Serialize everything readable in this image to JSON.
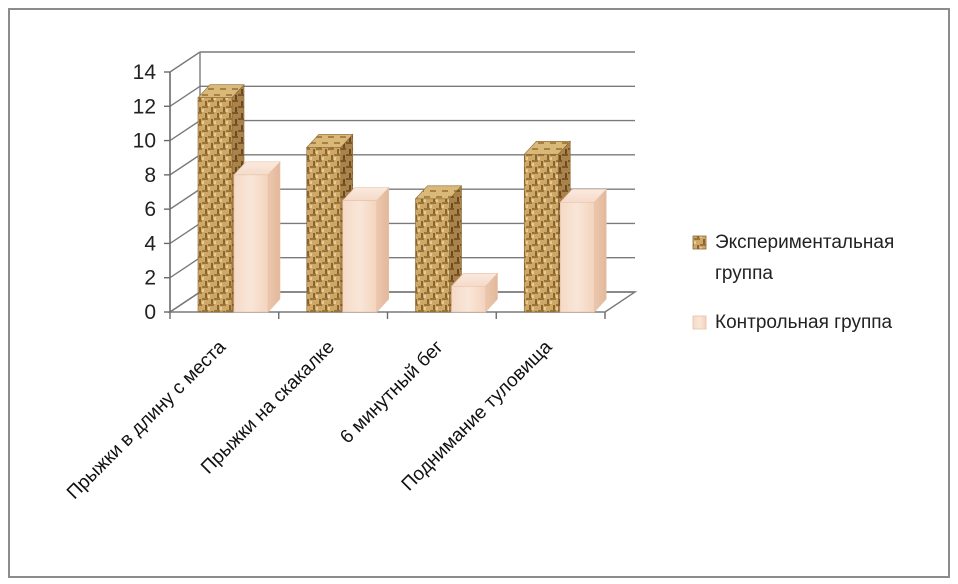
{
  "chart_data": {
    "type": "bar",
    "categories": [
      "Прыжки в длину с места",
      "Прыжки на скакалке",
      "6 минутный бег",
      "Поднимание туловища"
    ],
    "series": [
      {
        "name": "Экспериментальная группа",
        "values": [
          12.5,
          9.6,
          6.6,
          9.2
        ],
        "color": "#c8a060"
      },
      {
        "name": "Контрольная группа",
        "values": [
          8.0,
          6.5,
          1.5,
          6.4
        ],
        "color": "#f6dcc8"
      }
    ],
    "yticks": [
      "0",
      "2",
      "4",
      "6",
      "8",
      "10",
      "12",
      "14"
    ],
    "ylim": [
      0,
      14
    ],
    "grid": true,
    "legend_position": "right",
    "bar_style": "3d",
    "legend": {
      "entries": [
        {
          "lines": [
            "Экспериментальная",
            "группа"
          ]
        },
        {
          "lines": [
            "Контрольная группа"
          ]
        }
      ]
    }
  }
}
